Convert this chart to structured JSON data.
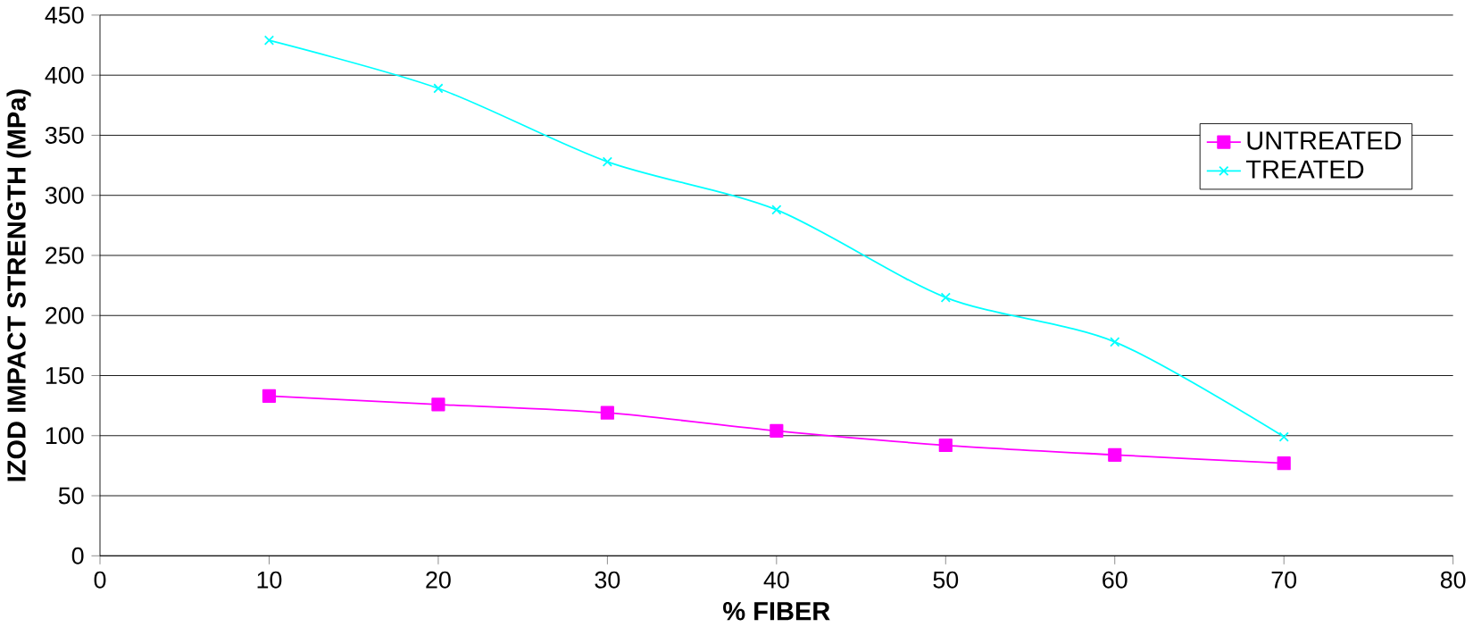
{
  "chart_data": {
    "type": "line",
    "xlabel": "% FIBER",
    "ylabel": "IZOD IMPACT STRENGTH  (MPa)",
    "x": [
      10,
      20,
      30,
      40,
      50,
      60,
      70
    ],
    "series": [
      {
        "name": "UNTREATED",
        "color": "#ff00ff",
        "marker": "square",
        "values": [
          133,
          126,
          119,
          104,
          92,
          84,
          77
        ]
      },
      {
        "name": "TREATED",
        "color": "#00ffff",
        "marker": "cross",
        "values": [
          429,
          389,
          328,
          288,
          215,
          178,
          99
        ]
      }
    ],
    "xlim": [
      0,
      80
    ],
    "xticks": [
      0,
      10,
      20,
      30,
      40,
      50,
      60,
      70,
      80
    ],
    "ylim": [
      0,
      450
    ],
    "yticks": [
      0,
      50,
      100,
      150,
      200,
      250,
      300,
      350,
      400,
      450
    ],
    "grid": "y",
    "legend": "top right",
    "line_style": "solid"
  }
}
